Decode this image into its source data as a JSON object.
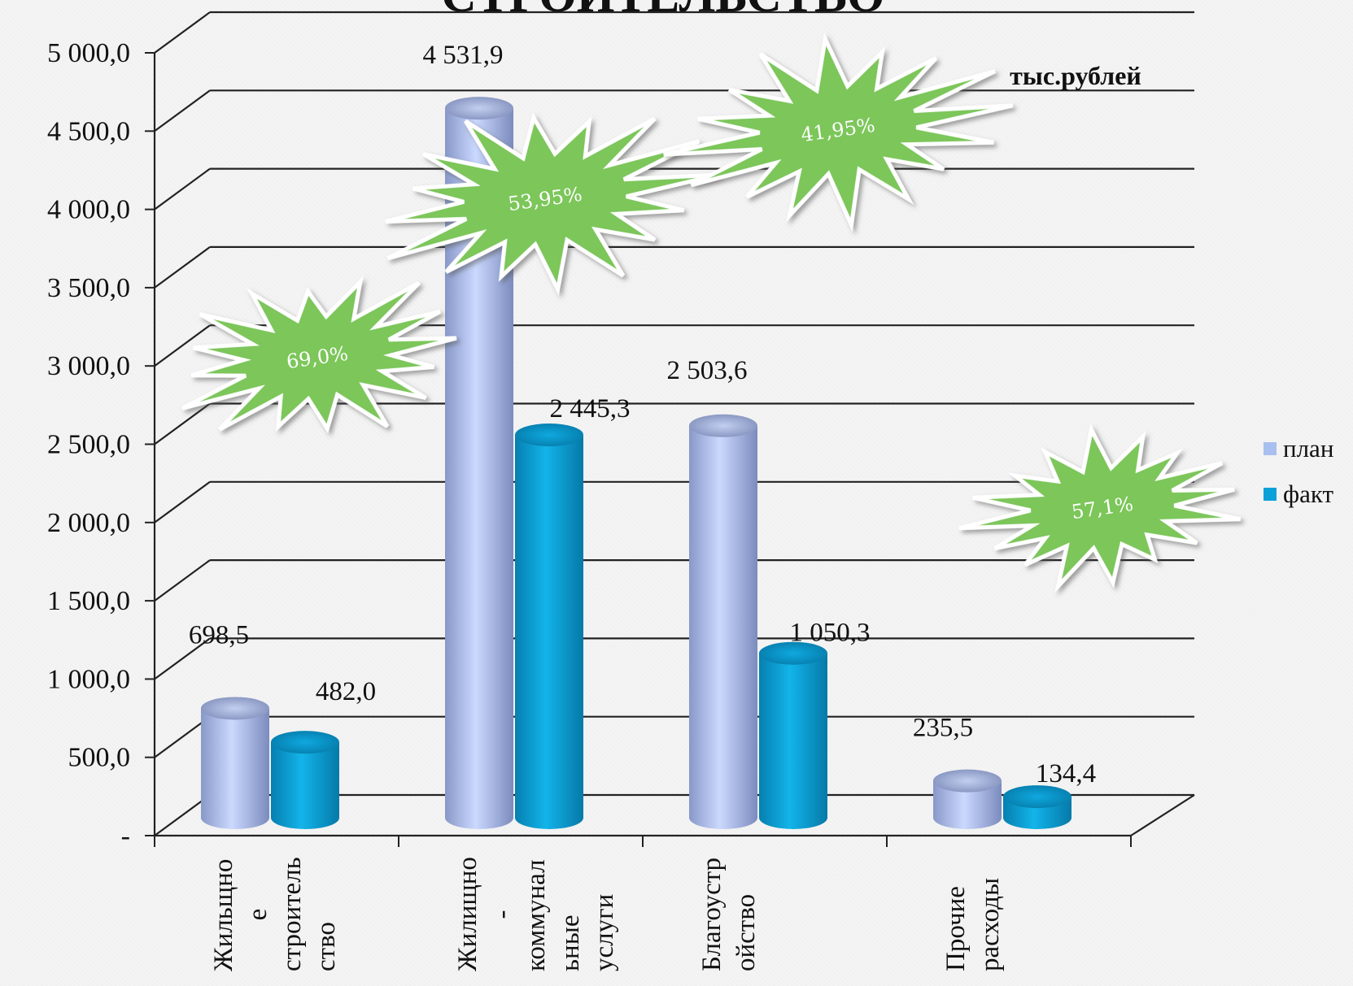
{
  "chart_data": {
    "type": "bar",
    "title_fragment": "СТРОИТЕЛЬСТВО",
    "unit": "тыс.рублей",
    "categories": [
      [
        "Жильщно",
        "е",
        "строитель",
        "ство"
      ],
      [
        "Жилищно",
        "-",
        "коммунал",
        "ьные",
        "услуги"
      ],
      [
        "Благоустр",
        "ойство"
      ],
      [
        "Прочие",
        "расходы"
      ]
    ],
    "series": [
      {
        "name": "план",
        "color": "#a9bff0",
        "values": [
          698.5,
          4531.9,
          2503.6,
          235.5
        ],
        "labels": [
          "698,5",
          "4 531,9",
          "2 503,6",
          "235,5"
        ]
      },
      {
        "name": "факт",
        "color": "#0aa1d8",
        "values": [
          482.0,
          2445.3,
          1050.3,
          134.4
        ],
        "labels": [
          "482,0",
          "2 445,3",
          "1 050,3",
          "134,4"
        ]
      }
    ],
    "ylim": [
      0,
      5000
    ],
    "yticks": [
      {
        "value": 0,
        "label": "-"
      },
      {
        "value": 500,
        "label": "500,0"
      },
      {
        "value": 1000,
        "label": "1 000,0"
      },
      {
        "value": 1500,
        "label": "1 500,0"
      },
      {
        "value": 2000,
        "label": "2 000,0"
      },
      {
        "value": 2500,
        "label": "2 500,0"
      },
      {
        "value": 3000,
        "label": "3 000,0"
      },
      {
        "value": 3500,
        "label": "3 500,0"
      },
      {
        "value": 4000,
        "label": "4 000,0"
      },
      {
        "value": 4500,
        "label": "4 500,0"
      },
      {
        "value": 5000,
        "label": "5 000,0"
      }
    ],
    "grid": true,
    "legend_position": "right",
    "annotations": [
      {
        "text": "69,0%",
        "category": 0
      },
      {
        "text": "53,95%",
        "category": 1
      },
      {
        "text": "41,95%",
        "category": 2
      },
      {
        "text": "57,1%",
        "category": 3
      }
    ]
  }
}
